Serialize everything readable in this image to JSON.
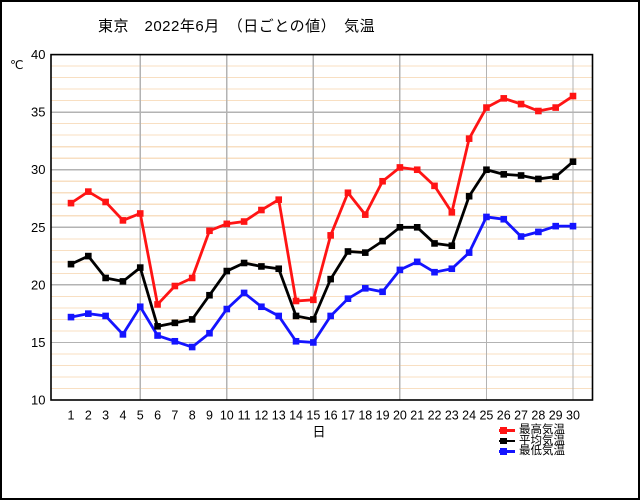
{
  "title": "東京　2022年6月　（日ごとの値）　気温",
  "colors": {
    "max_series": "#ff1414",
    "avg_series": "#000000",
    "min_series": "#1414ff",
    "grid_minor": "#f8dfc2",
    "grid_major": "#b3b3b3",
    "axis_frame": "#000000",
    "background": "#ffffff"
  },
  "chart_data": {
    "type": "line",
    "title": "東京　2022年6月　（日ごとの値）　気温",
    "xlabel": "日",
    "ylabel": "℃",
    "ylim": [
      10,
      40
    ],
    "y_ticks": [
      40,
      35,
      30,
      25,
      20,
      15,
      10
    ],
    "y_minor_step": 1,
    "x_major_grid_days": [
      5,
      10,
      15,
      20,
      25,
      30
    ],
    "grid": "on",
    "legend_position": "bottom-right",
    "x": [
      1,
      2,
      3,
      4,
      5,
      6,
      7,
      8,
      9,
      10,
      11,
      12,
      13,
      14,
      15,
      16,
      17,
      18,
      19,
      20,
      21,
      22,
      23,
      24,
      25,
      26,
      27,
      28,
      29,
      30
    ],
    "series": [
      {
        "name": "最高気温",
        "color": "#ff1414",
        "values": [
          27.1,
          28.1,
          27.2,
          25.6,
          26.2,
          18.3,
          19.9,
          20.6,
          24.7,
          25.3,
          25.5,
          26.5,
          27.4,
          18.6,
          18.7,
          24.3,
          28.0,
          26.1,
          29.0,
          30.2,
          30.0,
          28.6,
          26.3,
          32.7,
          35.4,
          36.2,
          35.7,
          35.1,
          35.4,
          36.4
        ]
      },
      {
        "name": "平均気温",
        "color": "#000000",
        "values": [
          21.8,
          22.5,
          20.6,
          20.3,
          21.5,
          16.4,
          16.7,
          17.0,
          19.1,
          21.2,
          21.9,
          21.6,
          21.4,
          17.3,
          17.0,
          20.5,
          22.9,
          22.8,
          23.8,
          25.0,
          25.0,
          23.6,
          23.4,
          27.7,
          30.0,
          29.6,
          29.5,
          29.2,
          29.4,
          30.7
        ]
      },
      {
        "name": "最低気温",
        "color": "#1414ff",
        "values": [
          17.2,
          17.5,
          17.3,
          15.7,
          18.1,
          15.6,
          15.1,
          14.6,
          15.8,
          17.9,
          19.3,
          18.1,
          17.3,
          15.1,
          15.0,
          17.3,
          18.8,
          19.7,
          19.4,
          21.3,
          22.0,
          21.1,
          21.4,
          22.8,
          25.9,
          25.7,
          24.2,
          24.6,
          25.1,
          25.1
        ]
      }
    ]
  }
}
